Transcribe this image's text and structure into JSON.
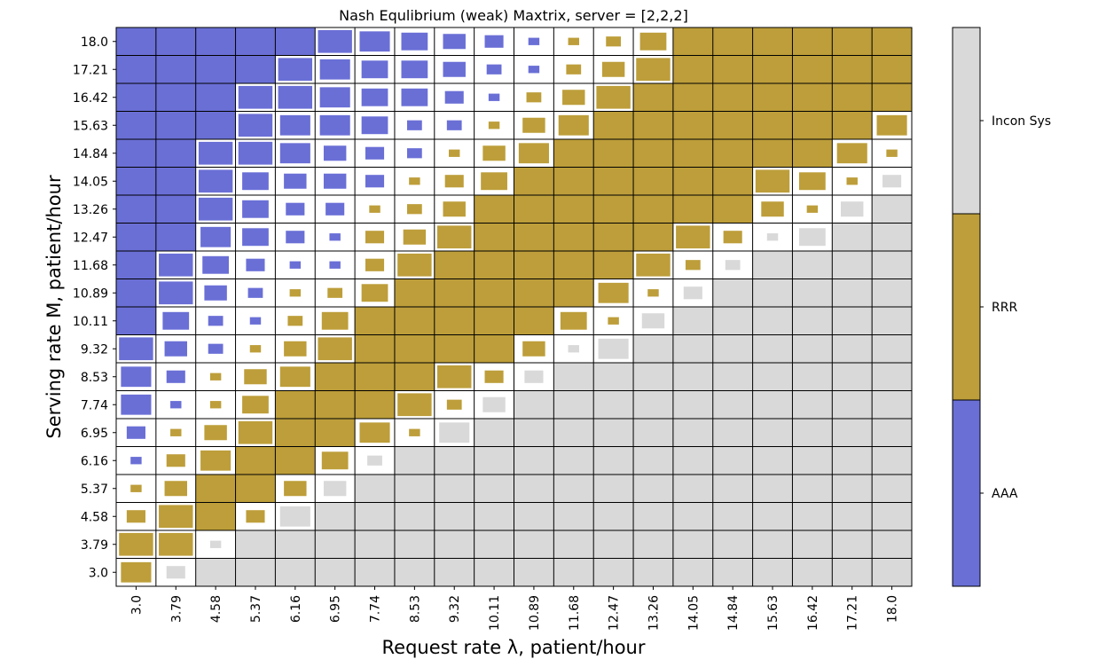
{
  "chart_data": {
    "type": "heatmap",
    "title": "Nash Equlibrium (weak) Maxtrix, server = [2,2,2]",
    "xlabel": "Request rate λ, patient/hour",
    "ylabel": "Serving rate M, patient/hour",
    "x_ticks": [
      "3.0",
      "3.79",
      "4.58",
      "5.37",
      "6.16",
      "6.95",
      "7.74",
      "8.53",
      "9.32",
      "10.11",
      "10.89",
      "11.68",
      "12.47",
      "13.26",
      "14.05",
      "14.84",
      "15.63",
      "16.42",
      "17.21",
      "18.0"
    ],
    "y_ticks_top_to_bottom": [
      "18.0",
      "17.21",
      "16.42",
      "15.63",
      "14.84",
      "14.05",
      "13.26",
      "12.47",
      "11.68",
      "10.89",
      "10.11",
      "9.32",
      "8.53",
      "7.74",
      "6.95",
      "6.16",
      "5.37",
      "4.58",
      "3.79",
      "3.0"
    ],
    "categories": [
      "AAA",
      "RRR",
      "Incon Sys"
    ],
    "colors": {
      "AAA": "#6a6fd6",
      "RRR": "#bd9e3a",
      "Incon Sys": "#d9d9d9",
      "edge": "#000000"
    },
    "colorbar_labels_top_to_bottom": [
      "Incon Sys",
      "RRR",
      "AAA"
    ],
    "cell_encoding": "class A=AAA R=RRR I=Incon Sys; size 0-9 = relative square size (9 = full cell)",
    "rows_top_to_bottom": [
      [
        "A9",
        "A9",
        "A9",
        "A9",
        "A9",
        "A8",
        "A7",
        "A6",
        "A5",
        "A4",
        "A2",
        "R2",
        "R3",
        "R6",
        "R9",
        "R9",
        "R9",
        "R9",
        "R9",
        "R9"
      ],
      [
        "A9",
        "A9",
        "A9",
        "A9",
        "A8",
        "A7",
        "A6",
        "A6",
        "A5",
        "A3",
        "A2",
        "R3",
        "R5",
        "R8",
        "R9",
        "R9",
        "R9",
        "R9",
        "R9",
        "R9"
      ],
      [
        "A9",
        "A9",
        "A9",
        "A8",
        "A8",
        "A7",
        "A6",
        "A6",
        "A4",
        "A2",
        "R3",
        "R5",
        "R8",
        "R9",
        "R9",
        "R9",
        "R9",
        "R9",
        "R9",
        "R9"
      ],
      [
        "A9",
        "A9",
        "A9",
        "A8",
        "A7",
        "A7",
        "A6",
        "A3",
        "A3",
        "R2",
        "R5",
        "R7",
        "R9",
        "R9",
        "R9",
        "R9",
        "R9",
        "R9",
        "R9",
        "R7"
      ],
      [
        "A9",
        "A9",
        "A8",
        "A8",
        "A7",
        "A5",
        "A4",
        "A3",
        "R2",
        "R5",
        "R7",
        "R9",
        "R9",
        "R9",
        "R9",
        "R9",
        "R9",
        "R9",
        "R7",
        "R2"
      ],
      [
        "A9",
        "A9",
        "A8",
        "A6",
        "A5",
        "A5",
        "A4",
        "R2",
        "R4",
        "R6",
        "R9",
        "R9",
        "R9",
        "R9",
        "R9",
        "R9",
        "R8",
        "R6",
        "R2",
        "I4"
      ],
      [
        "A9",
        "A9",
        "A8",
        "A6",
        "A4",
        "A4",
        "R2",
        "R3",
        "R5",
        "R9",
        "R9",
        "R9",
        "R9",
        "R9",
        "R9",
        "R9",
        "R5",
        "R2",
        "I5",
        "I9"
      ],
      [
        "A9",
        "A9",
        "A7",
        "A6",
        "A4",
        "A2",
        "R4",
        "R5",
        "R8",
        "R9",
        "R9",
        "R9",
        "R9",
        "R9",
        "R8",
        "R4",
        "I2",
        "I6",
        "I9",
        "I9"
      ],
      [
        "A9",
        "A8",
        "A6",
        "A4",
        "A2",
        "A2",
        "R4",
        "R8",
        "R9",
        "R9",
        "R9",
        "R9",
        "R9",
        "R8",
        "R3",
        "I3",
        "I9",
        "I9",
        "I9",
        "I9"
      ],
      [
        "A9",
        "A8",
        "A5",
        "A3",
        "R2",
        "R3",
        "R6",
        "R9",
        "R9",
        "R9",
        "R9",
        "R9",
        "R7",
        "R2",
        "I4",
        "I9",
        "I9",
        "I9",
        "I9",
        "I9"
      ],
      [
        "A9",
        "A6",
        "A3",
        "A2",
        "R3",
        "R6",
        "R9",
        "R9",
        "R9",
        "R9",
        "R9",
        "R6",
        "R2",
        "I5",
        "I9",
        "I9",
        "I9",
        "I9",
        "I9",
        "I9"
      ],
      [
        "A8",
        "A5",
        "A3",
        "R2",
        "R5",
        "R8",
        "R9",
        "R9",
        "R9",
        "R9",
        "R5",
        "I2",
        "I7",
        "I9",
        "I9",
        "I9",
        "I9",
        "I9",
        "I9",
        "I9"
      ],
      [
        "A7",
        "A4",
        "R2",
        "R5",
        "R7",
        "R9",
        "R9",
        "R9",
        "R8",
        "R4",
        "I4",
        "I9",
        "I9",
        "I9",
        "I9",
        "I9",
        "I9",
        "I9",
        "I9",
        "I9"
      ],
      [
        "A7",
        "A2",
        "R2",
        "R6",
        "R9",
        "R9",
        "R9",
        "R8",
        "R3",
        "I5",
        "I9",
        "I9",
        "I9",
        "I9",
        "I9",
        "I9",
        "I9",
        "I9",
        "I9",
        "I9"
      ],
      [
        "A4",
        "R2",
        "R5",
        "R8",
        "R9",
        "R9",
        "R7",
        "R2",
        "I7",
        "I9",
        "I9",
        "I9",
        "I9",
        "I9",
        "I9",
        "I9",
        "I9",
        "I9",
        "I9",
        "I9"
      ],
      [
        "A2",
        "R4",
        "R7",
        "R9",
        "R9",
        "R6",
        "I3",
        "I9",
        "I9",
        "I9",
        "I9",
        "I9",
        "I9",
        "I9",
        "I9",
        "I9",
        "I9",
        "I9",
        "I9",
        "I9"
      ],
      [
        "R2",
        "R5",
        "R9",
        "R9",
        "R5",
        "I5",
        "I9",
        "I9",
        "I9",
        "I9",
        "I9",
        "I9",
        "I9",
        "I9",
        "I9",
        "I9",
        "I9",
        "I9",
        "I9",
        "I9"
      ],
      [
        "R4",
        "R8",
        "R9",
        "R4",
        "I7",
        "I9",
        "I9",
        "I9",
        "I9",
        "I9",
        "I9",
        "I9",
        "I9",
        "I9",
        "I9",
        "I9",
        "I9",
        "I9",
        "I9",
        "I9"
      ],
      [
        "R8",
        "R8",
        "I2",
        "I9",
        "I9",
        "I9",
        "I9",
        "I9",
        "I9",
        "I9",
        "I9",
        "I9",
        "I9",
        "I9",
        "I9",
        "I9",
        "I9",
        "I9",
        "I9",
        "I9"
      ],
      [
        "R7",
        "I4",
        "I9",
        "I9",
        "I9",
        "I9",
        "I9",
        "I9",
        "I9",
        "I9",
        "I9",
        "I9",
        "I9",
        "I9",
        "I9",
        "I9",
        "I9",
        "I9",
        "I9",
        "I9"
      ]
    ]
  }
}
